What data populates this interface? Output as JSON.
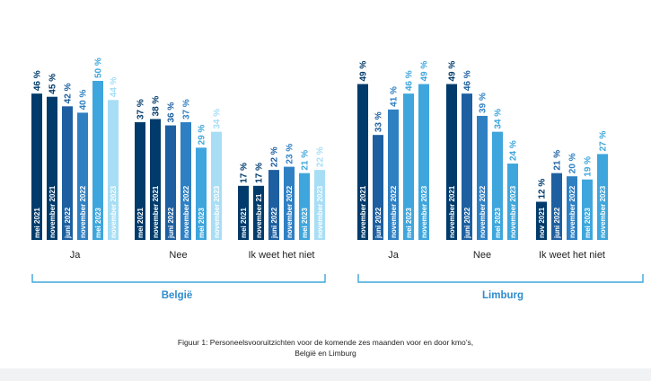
{
  "colors": {
    "c1": "#003b6b",
    "c2": "#1d5fa0",
    "c3": "#2f80c3",
    "c4": "#3ea6dc",
    "c5": "#a8def5",
    "bracket": "#3ea6dc",
    "title": "#2f8ccd"
  },
  "chart_data": [
    {
      "type": "bar",
      "title": "België",
      "groups": [
        {
          "name": "Ja",
          "bars": [
            {
              "label": "mei 2021",
              "value": 46,
              "value_label": "46 %",
              "color": "c1"
            },
            {
              "label": "november 2021",
              "value": 45,
              "value_label": "45 %",
              "color": "c1"
            },
            {
              "label": "juni 2022",
              "value": 42,
              "value_label": "42 %",
              "color": "c2"
            },
            {
              "label": "november 2022",
              "value": 40,
              "value_label": "40 %",
              "color": "c3"
            },
            {
              "label": "mei 2023",
              "value": 50,
              "value_label": "50 %",
              "color": "c4"
            },
            {
              "label": "november 2023",
              "value": 44,
              "value_label": "44 %",
              "color": "c5"
            }
          ]
        },
        {
          "name": "Nee",
          "bars": [
            {
              "label": "mei 2021",
              "value": 37,
              "value_label": "37 %",
              "color": "c1"
            },
            {
              "label": "november 2021",
              "value": 38,
              "value_label": "38 %",
              "color": "c1"
            },
            {
              "label": "juni 2022",
              "value": 36,
              "value_label": "36 %",
              "color": "c2"
            },
            {
              "label": "november 2022",
              "value": 37,
              "value_label": "37 %",
              "color": "c3"
            },
            {
              "label": "mei 2023",
              "value": 29,
              "value_label": "29 %",
              "color": "c4"
            },
            {
              "label": "november 2023",
              "value": 34,
              "value_label": "34 %",
              "color": "c5"
            }
          ]
        },
        {
          "name": "Ik weet het niet",
          "bars": [
            {
              "label": "mei 2021",
              "value": 17,
              "value_label": "17 %",
              "color": "c1"
            },
            {
              "label": "november 21",
              "value": 17,
              "value_label": "17 %",
              "color": "c1"
            },
            {
              "label": "juni 2022",
              "value": 22,
              "value_label": "22 %",
              "color": "c2"
            },
            {
              "label": "november 2022",
              "value": 23,
              "value_label": "23 %",
              "color": "c3"
            },
            {
              "label": "mei 2023",
              "value": 21,
              "value_label": "21 %",
              "color": "c4"
            },
            {
              "label": "november 2023",
              "value": 22,
              "value_label": "22 %",
              "color": "c5"
            }
          ]
        }
      ]
    },
    {
      "type": "bar",
      "title": "Limburg",
      "groups": [
        {
          "name": "Ja",
          "bars": [
            {
              "label": "november 2021",
              "value": 49,
              "value_label": "49 %",
              "color": "c1"
            },
            {
              "label": "juni 2022",
              "value": 33,
              "value_label": "33 %",
              "color": "c2"
            },
            {
              "label": "november 2022",
              "value": 41,
              "value_label": "41 %",
              "color": "c3"
            },
            {
              "label": "mei 2023",
              "value": 46,
              "value_label": "46 %",
              "color": "c4"
            },
            {
              "label": "november 2023",
              "value": 49,
              "value_label": "49 %",
              "color": "c4"
            }
          ]
        },
        {
          "name": "Nee",
          "bars": [
            {
              "label": "november 2021",
              "value": 49,
              "value_label": "49 %",
              "color": "c1"
            },
            {
              "label": "juni 2022",
              "value": 46,
              "value_label": "46 %",
              "color": "c2"
            },
            {
              "label": "november 2022",
              "value": 39,
              "value_label": "39 %",
              "color": "c3"
            },
            {
              "label": "mei 2023",
              "value": 34,
              "value_label": "34 %",
              "color": "c4"
            },
            {
              "label": "november 2023",
              "value": 24,
              "value_label": "24 %",
              "color": "c4"
            }
          ]
        },
        {
          "name": "Ik weet het niet",
          "bars": [
            {
              "label": "nov 2021",
              "value": 12,
              "value_label": "12 %",
              "color": "c1"
            },
            {
              "label": "juni 2022",
              "value": 21,
              "value_label": "21 %",
              "color": "c2"
            },
            {
              "label": "november 2022",
              "value": 20,
              "value_label": "20 %",
              "color": "c3"
            },
            {
              "label": "mei 2023",
              "value": 19,
              "value_label": "19 %",
              "color": "c4"
            },
            {
              "label": "november 2023",
              "value": 27,
              "value_label": "27 %",
              "color": "c4"
            }
          ]
        }
      ]
    }
  ],
  "caption": {
    "line1": "Figuur 1: Personeelsvooruitzichten voor de komende zes maanden voor en door kmo’s,",
    "line2": "België en Limburg"
  }
}
